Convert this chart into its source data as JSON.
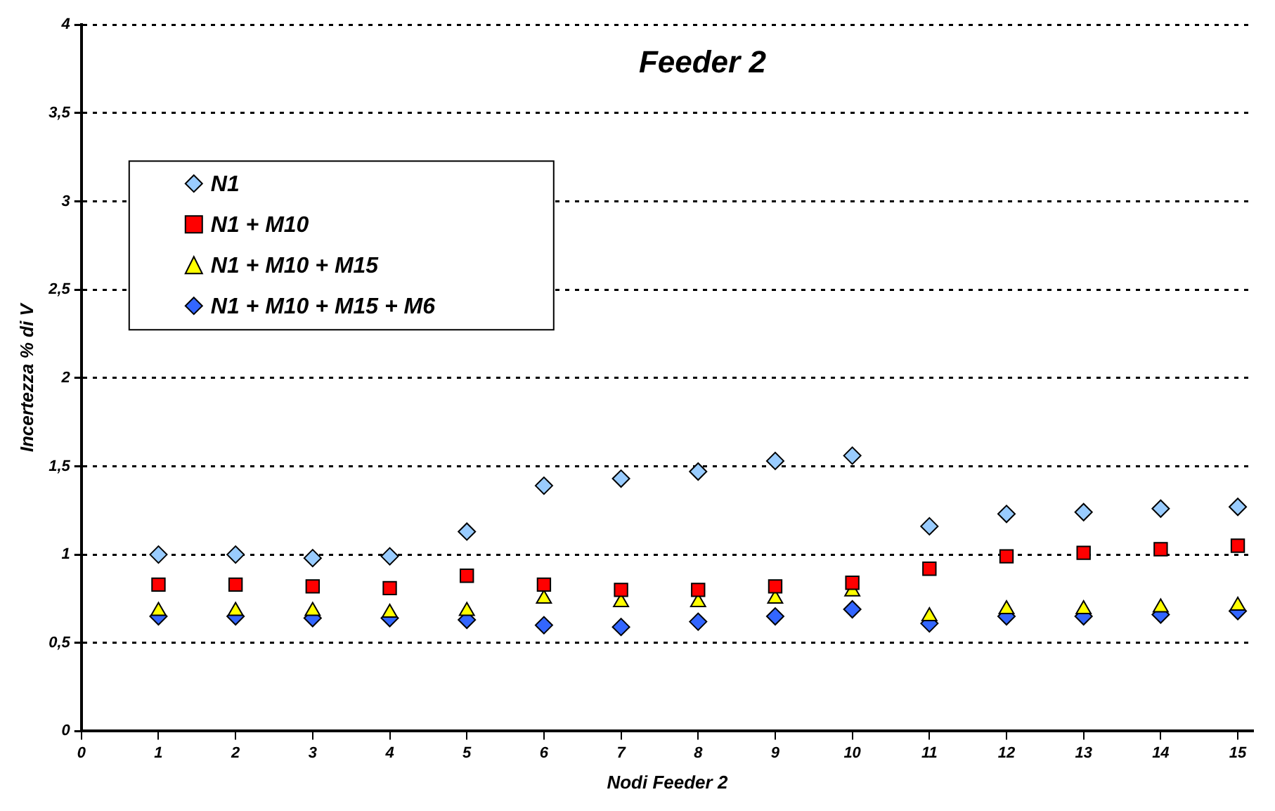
{
  "chart_data": {
    "type": "scatter",
    "title": "Feeder 2",
    "xlabel": "Nodi Feeder 2",
    "ylabel": "Incertezza % di V",
    "x": [
      1,
      2,
      3,
      4,
      5,
      6,
      7,
      8,
      9,
      10,
      11,
      12,
      13,
      14,
      15
    ],
    "series": [
      {
        "name": "N1",
        "color": "#99ccff",
        "marker": "diamond",
        "values": [
          1.0,
          1.0,
          0.98,
          0.99,
          1.13,
          1.39,
          1.43,
          1.47,
          1.53,
          1.56,
          1.16,
          1.23,
          1.24,
          1.26,
          1.27
        ]
      },
      {
        "name": "N1 + M10",
        "color": "#ff0000",
        "marker": "square",
        "values": [
          0.83,
          0.83,
          0.82,
          0.81,
          0.88,
          0.83,
          0.8,
          0.8,
          0.82,
          0.84,
          0.92,
          0.99,
          1.01,
          1.03,
          1.05
        ]
      },
      {
        "name": "N1 + M10 + M15",
        "color": "#ffff00",
        "marker": "triangle",
        "values": [
          0.68,
          0.68,
          0.68,
          0.67,
          0.68,
          0.75,
          0.73,
          0.73,
          0.75,
          0.79,
          0.65,
          0.69,
          0.69,
          0.7,
          0.71
        ]
      },
      {
        "name": "N1 + M10 + M15 + M6",
        "color": "#3366ff",
        "marker": "diamond",
        "values": [
          0.65,
          0.65,
          0.64,
          0.64,
          0.63,
          0.6,
          0.59,
          0.62,
          0.65,
          0.69,
          0.61,
          0.65,
          0.65,
          0.66,
          0.68
        ]
      }
    ],
    "xlim": [
      0,
      15.2
    ],
    "xticks": [
      0,
      1,
      2,
      3,
      4,
      5,
      6,
      7,
      8,
      9,
      10,
      11,
      12,
      13,
      14,
      15
    ],
    "ylim": [
      0,
      4
    ],
    "yticks": [
      0,
      {
        "value": 0.5,
        "label": "0,5"
      },
      1,
      {
        "value": 1.5,
        "label": "1,5"
      },
      2,
      {
        "value": 2.5,
        "label": "2,5"
      },
      3,
      {
        "value": 3.5,
        "label": "3,5"
      },
      4
    ],
    "grid": "y",
    "legend": "top left"
  }
}
